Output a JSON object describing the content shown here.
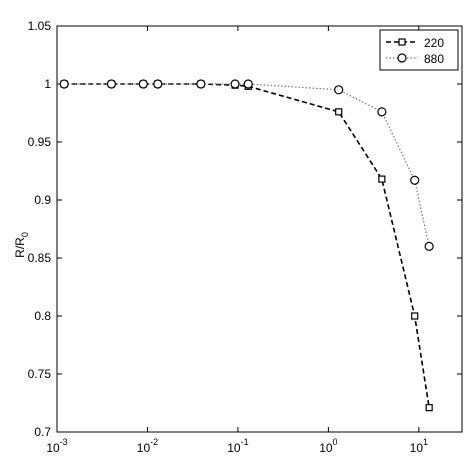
{
  "chart_data": {
    "type": "line",
    "ylabel": "R/R",
    "ylabel_sub": "0",
    "x": [
      0.0012,
      0.004,
      0.009,
      0.013,
      0.039,
      0.093,
      0.13,
      1.3,
      3.9,
      9,
      13
    ],
    "series": [
      {
        "name": "220",
        "color": "#000000",
        "linestyle": "dashed",
        "marker": "square",
        "values": [
          1,
          1,
          1,
          1,
          1,
          0.999,
          0.998,
          0.976,
          0.918,
          0.8,
          0.721
        ]
      },
      {
        "name": "880",
        "color": "#777777",
        "linestyle": "dotted",
        "marker": "circle",
        "values": [
          1,
          1,
          1,
          1,
          1,
          1,
          1,
          0.995,
          0.976,
          0.917,
          0.86
        ]
      }
    ],
    "xscale": "log",
    "xlim": [
      0.001,
      30
    ],
    "xticks": [
      {
        "value": 0.001,
        "label": "10",
        "exponent": "-3"
      },
      {
        "value": 0.01,
        "label": "10",
        "exponent": "-2"
      },
      {
        "value": 0.1,
        "label": "10",
        "exponent": "-1"
      },
      {
        "value": 1,
        "label": "10",
        "exponent": "0"
      },
      {
        "value": 10,
        "label": "10",
        "exponent": "1"
      }
    ],
    "ylim": [
      0.7,
      1.05
    ],
    "yticks": [
      0.7,
      0.75,
      0.8,
      0.85,
      0.9,
      0.95,
      1,
      1.05
    ],
    "legend": "upper right"
  }
}
